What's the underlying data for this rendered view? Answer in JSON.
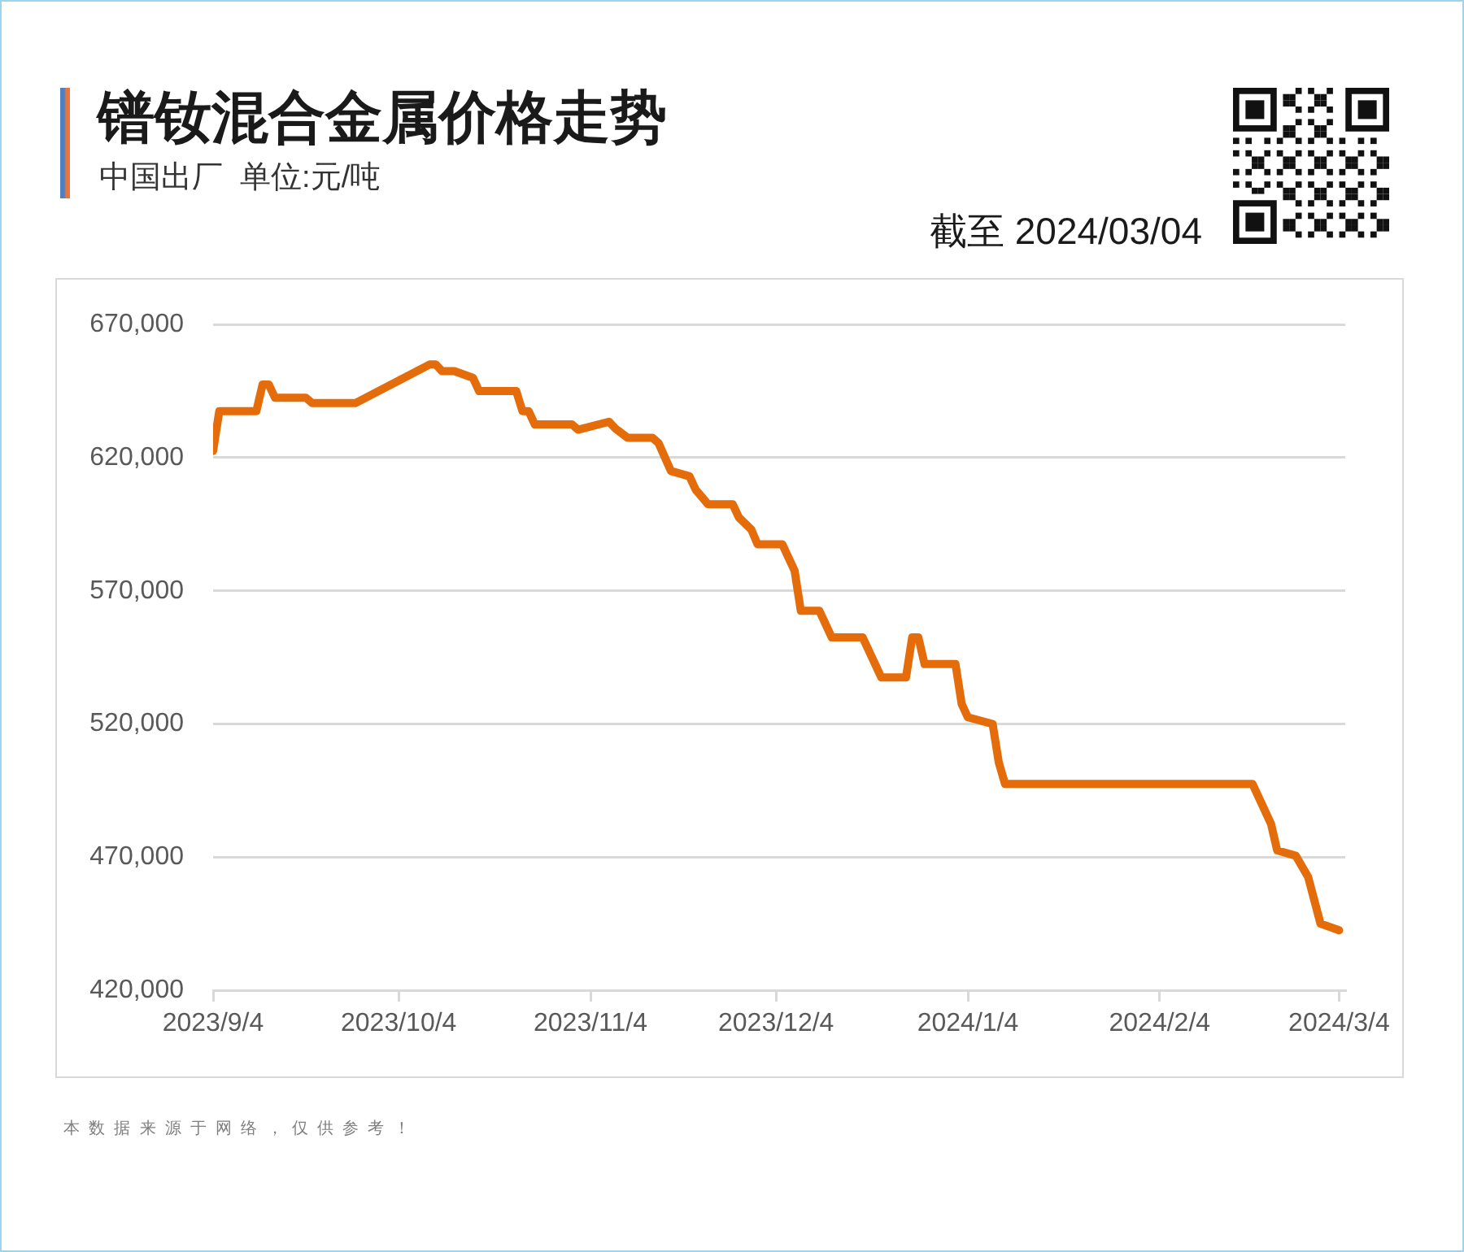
{
  "chart_data": {
    "type": "line",
    "title": "镨钕混合金属价格走势",
    "subtitle": "中国出厂  单位:元/吨",
    "annotations": [
      "截至 2024/03/04",
      "本数据来源于网络，仅供参考！"
    ],
    "x": [
      "2023-09-04",
      "2023-09-05",
      "2023-09-11",
      "2023-09-12",
      "2023-09-13",
      "2023-09-14",
      "2023-09-19",
      "2023-09-20",
      "2023-09-27",
      "2023-10-09",
      "2023-10-10",
      "2023-10-11",
      "2023-10-13",
      "2023-10-16",
      "2023-10-17",
      "2023-10-23",
      "2023-10-24",
      "2023-10-25",
      "2023-10-26",
      "2023-11-01",
      "2023-11-02",
      "2023-11-07",
      "2023-11-08",
      "2023-11-10",
      "2023-11-14",
      "2023-11-15",
      "2023-11-17",
      "2023-11-20",
      "2023-11-21",
      "2023-11-23",
      "2023-11-27",
      "2023-11-28",
      "2023-11-30",
      "2023-12-01",
      "2023-12-05",
      "2023-12-07",
      "2023-12-08",
      "2023-12-11",
      "2023-12-13",
      "2023-12-18",
      "2023-12-21",
      "2023-12-25",
      "2023-12-26",
      "2023-12-27",
      "2023-12-28",
      "2024-01-02",
      "2024-01-03",
      "2024-01-04",
      "2024-01-08",
      "2024-01-09",
      "2024-01-10",
      "2024-02-19",
      "2024-02-22",
      "2024-02-23",
      "2024-02-26",
      "2024-02-28",
      "2024-03-01",
      "2024-03-04"
    ],
    "series": [
      {
        "color": "#e46c0a",
        "values": [
          622500,
          637500,
          637500,
          647500,
          647500,
          642500,
          642500,
          640500,
          640500,
          655000,
          655000,
          652500,
          652500,
          650000,
          645000,
          645000,
          637500,
          637500,
          632500,
          632500,
          630500,
          633500,
          631000,
          627500,
          627500,
          625500,
          615000,
          613000,
          608000,
          602500,
          602500,
          597500,
          593000,
          587500,
          587500,
          577500,
          562500,
          562500,
          552500,
          552500,
          537500,
          537500,
          552500,
          552500,
          542500,
          542500,
          527500,
          522500,
          520000,
          505500,
          497500,
          497500,
          482500,
          472500,
          470500,
          462500,
          445000,
          442500
        ]
      }
    ],
    "xlim": [
      "2023-09-04",
      "2024-03-05"
    ],
    "xticks": [
      {
        "value": "2023-09-04",
        "label": "2023/9/4"
      },
      {
        "value": "2023-10-04",
        "label": "2023/10/4"
      },
      {
        "value": "2023-11-04",
        "label": "2023/11/4"
      },
      {
        "value": "2023-12-04",
        "label": "2023/12/4"
      },
      {
        "value": "2024-01-04",
        "label": "2024/1/4"
      },
      {
        "value": "2024-02-04",
        "label": "2024/2/4"
      },
      {
        "value": "2024-03-04",
        "label": "2024/3/4"
      }
    ],
    "ylim": [
      420000,
      670000
    ],
    "yticks": [
      {
        "value": 420000,
        "label": "420,000"
      },
      {
        "value": 470000,
        "label": "470,000"
      },
      {
        "value": 520000,
        "label": "520,000"
      },
      {
        "value": 570000,
        "label": "570,000"
      },
      {
        "value": 620000,
        "label": "620,000"
      },
      {
        "value": 670000,
        "label": "670,000"
      }
    ],
    "grid": "y",
    "legend": false,
    "marker": "none",
    "line_style": "solid"
  }
}
